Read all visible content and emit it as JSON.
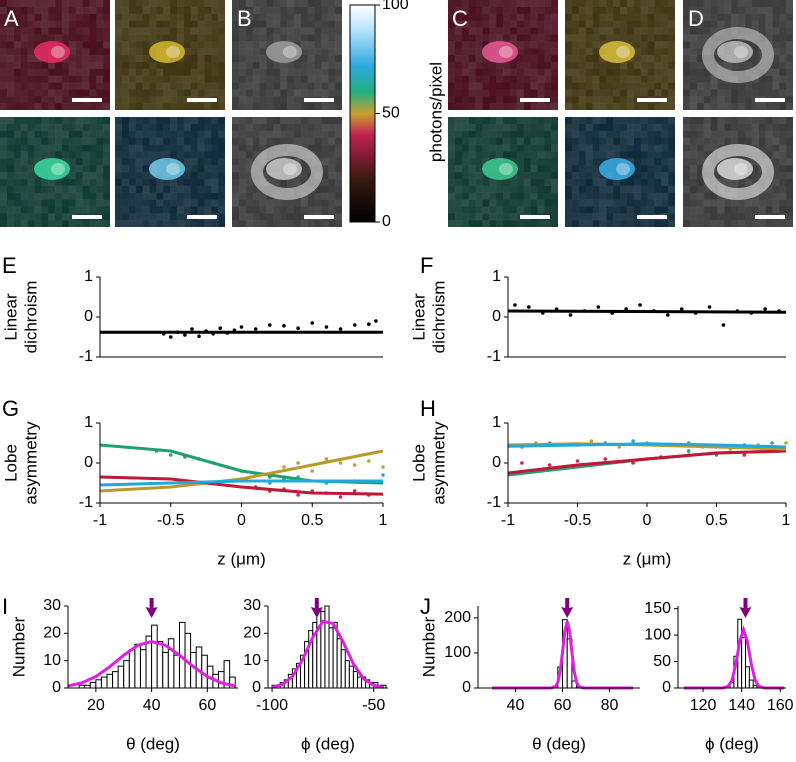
{
  "panel_labels": [
    "A",
    "B",
    "C",
    "D",
    "E",
    "F",
    "G",
    "H",
    "I",
    "J"
  ],
  "colorbar": {
    "lim": [
      0,
      100
    ],
    "ticks": [
      0,
      50,
      100
    ],
    "label": "photons/pixel"
  },
  "chart_data": [
    {
      "type": "scatter",
      "ylabel": [
        "Linear",
        "dichroism"
      ],
      "xlim": [
        -1,
        1
      ],
      "ylim": [
        -1,
        1
      ],
      "yticks": [
        -1,
        0,
        1
      ],
      "series": [
        {
          "style": "points",
          "color": "#000000",
          "x": [
            -0.55,
            -0.5,
            -0.45,
            -0.4,
            -0.35,
            -0.3,
            -0.25,
            -0.2,
            -0.15,
            -0.1,
            -0.05,
            0,
            0.1,
            0.2,
            0.3,
            0.4,
            0.5,
            0.6,
            0.7,
            0.8,
            0.9,
            0.95
          ],
          "values": [
            -0.42,
            -0.5,
            -0.38,
            -0.45,
            -0.3,
            -0.48,
            -0.35,
            -0.42,
            -0.28,
            -0.4,
            -0.33,
            -0.25,
            -0.3,
            -0.2,
            -0.22,
            -0.28,
            -0.15,
            -0.25,
            -0.3,
            -0.2,
            -0.18,
            -0.1
          ]
        },
        {
          "style": "line",
          "color": "#000000",
          "x": [
            -1,
            1
          ],
          "values": [
            -0.38,
            -0.38
          ]
        }
      ]
    },
    {
      "type": "scatter",
      "ylabel": [
        "Linear",
        "dichroism"
      ],
      "xlim": [
        -1,
        1
      ],
      "ylim": [
        -1,
        1
      ],
      "yticks": [
        -1,
        0,
        1
      ],
      "series": [
        {
          "style": "points",
          "color": "#000000",
          "x": [
            -0.95,
            -0.85,
            -0.75,
            -0.65,
            -0.55,
            -0.45,
            -0.35,
            -0.25,
            -0.15,
            -0.05,
            0.05,
            0.15,
            0.25,
            0.35,
            0.45,
            0.55,
            0.65,
            0.75,
            0.85,
            0.95
          ],
          "values": [
            0.3,
            0.25,
            0.1,
            0.2,
            0.05,
            0.15,
            0.25,
            0.1,
            0.2,
            0.3,
            0.15,
            0.05,
            0.2,
            0.1,
            0.25,
            -0.2,
            0.15,
            0.1,
            0.2,
            0.15
          ]
        },
        {
          "style": "line",
          "color": "#000000",
          "x": [
            -1,
            1
          ],
          "values": [
            0.15,
            0.12
          ]
        }
      ]
    },
    {
      "type": "scatter",
      "ylabel": [
        "Lobe",
        "asymmetry"
      ],
      "xlabel": "z (μm)",
      "xlim": [
        -1,
        1
      ],
      "ylim": [
        -1,
        1
      ],
      "yticks": [
        -1,
        0,
        1
      ],
      "xticks": [
        -1,
        -0.5,
        0,
        0.5,
        1
      ],
      "series": [
        {
          "style": "points",
          "color": "#20a070",
          "x": [
            -0.6,
            -0.5,
            -0.4,
            -0.3,
            -0.2,
            -0.1,
            0,
            0.1,
            0.2,
            0.3
          ],
          "values": [
            0.3,
            0.2,
            0.15,
            0.1,
            0,
            -0.1,
            -0.2,
            -0.3,
            -0.35,
            -0.4
          ]
        },
        {
          "style": "points",
          "color": "#c0a030",
          "x": [
            0.3,
            0.4,
            0.5,
            0.6,
            0.7,
            0.8,
            0.9,
            1
          ],
          "values": [
            -0.1,
            0,
            -0.2,
            0.1,
            0,
            -0.05,
            0.05,
            -0.1
          ]
        },
        {
          "style": "points",
          "color": "#e0204a",
          "x": [
            0.1,
            0.2,
            0.3,
            0.4,
            0.5,
            0.6,
            0.7,
            0.8,
            0.9
          ],
          "values": [
            -0.6,
            -0.7,
            -0.65,
            -0.8,
            -0.7,
            -0.75,
            -0.85,
            -0.7,
            -0.8
          ]
        },
        {
          "style": "points",
          "color": "#20a8e0",
          "x": [
            0,
            0.2,
            0.4,
            0.6,
            0.8,
            1
          ],
          "values": [
            -0.4,
            -0.5,
            -0.35,
            -0.5,
            -0.45,
            -0.3
          ]
        },
        {
          "style": "line",
          "color": "#20a070",
          "x": [
            -1,
            -0.5,
            0,
            0.5,
            1
          ],
          "values": [
            0.45,
            0.3,
            -0.2,
            -0.45,
            -0.5
          ]
        },
        {
          "style": "line",
          "color": "#b89a28",
          "x": [
            -1,
            -0.5,
            0,
            0.5,
            1
          ],
          "values": [
            -0.7,
            -0.6,
            -0.4,
            -0.05,
            0.3
          ]
        },
        {
          "style": "line",
          "color": "#c01838",
          "x": [
            -1,
            -0.5,
            0,
            0.5,
            1
          ],
          "values": [
            -0.35,
            -0.4,
            -0.6,
            -0.75,
            -0.78
          ]
        },
        {
          "style": "line",
          "color": "#20a8e0",
          "x": [
            -1,
            -0.5,
            0,
            0.5,
            1
          ],
          "values": [
            -0.55,
            -0.5,
            -0.45,
            -0.45,
            -0.45
          ]
        }
      ]
    },
    {
      "type": "scatter",
      "ylabel": [
        "Lobe",
        "asymmetry"
      ],
      "xlabel": "z (μm)",
      "xlim": [
        -1,
        1
      ],
      "ylim": [
        -1,
        1
      ],
      "yticks": [
        -1,
        0,
        1
      ],
      "xticks": [
        -1,
        -0.5,
        0,
        0.5,
        1
      ],
      "series": [
        {
          "style": "points",
          "color": "#c0a030",
          "x": [
            -0.8,
            -0.6,
            -0.4,
            -0.2,
            0,
            0.2,
            0.4,
            0.6,
            0.8,
            1
          ],
          "values": [
            0.5,
            0.45,
            0.55,
            0.4,
            0.5,
            0.45,
            0.4,
            0.35,
            0.45,
            0.5
          ]
        },
        {
          "style": "points",
          "color": "#20a8e0",
          "x": [
            -0.9,
            -0.7,
            -0.5,
            -0.3,
            -0.1,
            0.1,
            0.3,
            0.5,
            0.7,
            0.9
          ],
          "values": [
            0.4,
            0.5,
            0.45,
            0.5,
            0.55,
            0.45,
            0.5,
            0.4,
            0.45,
            0.5
          ]
        },
        {
          "style": "points",
          "color": "#e0204a",
          "x": [
            -0.9,
            -0.7,
            -0.5,
            -0.3,
            -0.1,
            0.1,
            0.3,
            0.5,
            0.7,
            0.9
          ],
          "values": [
            0,
            -0.05,
            0.05,
            0.1,
            0,
            0.15,
            0.2,
            0.25,
            0.2,
            0.3
          ]
        },
        {
          "style": "points",
          "color": "#20a070",
          "x": [
            -0.3,
            0,
            0.3,
            0.5
          ],
          "values": [
            0,
            0.1,
            0.3,
            0.2
          ]
        },
        {
          "style": "line",
          "color": "#20a070",
          "x": [
            -1,
            -0.5,
            0,
            0.5,
            1
          ],
          "values": [
            -0.3,
            -0.1,
            0.1,
            0.25,
            0.3
          ]
        },
        {
          "style": "line",
          "color": "#c01838",
          "x": [
            -1,
            -0.5,
            0,
            0.5,
            1
          ],
          "values": [
            -0.25,
            -0.05,
            0.1,
            0.25,
            0.3
          ]
        },
        {
          "style": "line",
          "color": "#b89a28",
          "x": [
            -1,
            -0.5,
            0,
            0.5,
            1
          ],
          "values": [
            0.45,
            0.48,
            0.45,
            0.4,
            0.35
          ]
        },
        {
          "style": "line",
          "color": "#20a8e0",
          "x": [
            -1,
            -0.5,
            0,
            0.5,
            1
          ],
          "values": [
            0.42,
            0.45,
            0.48,
            0.45,
            0.4
          ]
        }
      ]
    },
    {
      "type": "histogram",
      "ylabel": "Number",
      "xlabel": "θ (deg)",
      "xlim": [
        10,
        71
      ],
      "ylim": [
        0,
        30
      ],
      "xticks": [
        20,
        40,
        60
      ],
      "yticks": [
        0,
        10,
        20,
        30
      ],
      "bins": [
        14,
        16,
        18,
        20,
        22,
        24,
        26,
        28,
        30,
        32,
        34,
        36,
        38,
        40,
        42,
        44,
        46,
        48,
        50,
        52,
        54,
        56,
        58,
        60,
        62,
        64,
        66,
        68,
        70
      ],
      "values": [
        1,
        1,
        2,
        3,
        4,
        5,
        6,
        8,
        10,
        14,
        16,
        14,
        19,
        23,
        17,
        13,
        18,
        12,
        24,
        20,
        13,
        15,
        12,
        8,
        5,
        6,
        10,
        4
      ],
      "fit": {
        "color": "#e020e0",
        "x": [
          10,
          15,
          20,
          25,
          30,
          35,
          40,
          45,
          50,
          55,
          60,
          65,
          70
        ],
        "values": [
          0.75,
          1.9,
          4.2,
          7.8,
          12,
          15.6,
          17,
          15.6,
          12,
          7.8,
          4.2,
          1.9,
          0.75
        ]
      },
      "arrow_x": 40,
      "arrow_color": "#800080"
    },
    {
      "type": "histogram",
      "xlabel": "ϕ (deg)",
      "xlim": [
        -102,
        -43
      ],
      "ylim": [
        0,
        30
      ],
      "xticks": [
        -100,
        -50
      ],
      "yticks": [
        0,
        10,
        20,
        30
      ],
      "bins": [
        -100,
        -98,
        -96,
        -94,
        -92,
        -90,
        -88,
        -86,
        -84,
        -82,
        -80,
        -78,
        -76,
        -74,
        -72,
        -70,
        -68,
        -66,
        -64,
        -62,
        -60,
        -58,
        -56,
        -54,
        -52,
        -50,
        -48,
        -46,
        -44
      ],
      "values": [
        1,
        1,
        2,
        3,
        5,
        7,
        9,
        12,
        17,
        21,
        24,
        29,
        28,
        30,
        22,
        24,
        18,
        14,
        10,
        8,
        6,
        4,
        4,
        3,
        2,
        2,
        1,
        1
      ],
      "fit": {
        "color": "#e020e0",
        "x": [
          -100,
          -95,
          -90,
          -85,
          -80,
          -75,
          -70,
          -65,
          -60,
          -55,
          -50,
          -45
        ],
        "values": [
          0.28,
          1.3,
          4.2,
          10.3,
          18.5,
          24.4,
          23.6,
          16.8,
          8.8,
          3.4,
          0.95,
          0.2
        ]
      },
      "arrow_x": -78,
      "arrow_color": "#800080"
    },
    {
      "type": "histogram",
      "ylabel": "Number",
      "xlabel": "θ (deg)",
      "xlim": [
        24,
        93
      ],
      "ylim": [
        0,
        234
      ],
      "xticks": [
        40,
        60,
        80
      ],
      "yticks": [
        0,
        100,
        200
      ],
      "bins": [
        56,
        58,
        60,
        62,
        64,
        66,
        68
      ],
      "values": [
        5,
        60,
        195,
        140,
        20,
        3
      ],
      "fit": {
        "color": "#e020e0",
        "x": [
          30,
          55,
          57,
          58,
          59,
          60,
          61,
          62,
          63,
          64,
          65,
          66,
          67,
          69,
          90
        ],
        "values": [
          0,
          0.1,
          4,
          16.1,
          47.4,
          102,
          163,
          190,
          163,
          102,
          47,
          16,
          4,
          0.1,
          0
        ]
      },
      "arrow_x": 62,
      "arrow_color": "#800080"
    },
    {
      "type": "histogram",
      "xlabel": "ϕ (deg)",
      "xlim": [
        107,
        163
      ],
      "ylim": [
        0,
        155
      ],
      "xticks": [
        120,
        140,
        160
      ],
      "yticks": [
        0,
        50,
        100,
        150
      ],
      "bins": [
        132,
        134,
        136,
        138,
        140,
        142,
        144,
        146,
        148,
        150,
        152
      ],
      "values": [
        2,
        10,
        60,
        130,
        95,
        40,
        15,
        5,
        3,
        1
      ],
      "fit": {
        "color": "#e020e0",
        "x": [
          110,
          130,
          133,
          135,
          137,
          139,
          141,
          143,
          145,
          147,
          149,
          152,
          162
        ],
        "values": [
          0,
          0.1,
          3.1,
          14.9,
          45.2,
          88,
          110,
          88,
          45.2,
          14.9,
          3.1,
          0.1,
          0
        ]
      },
      "arrow_x": 142,
      "arrow_color": "#800080"
    }
  ]
}
